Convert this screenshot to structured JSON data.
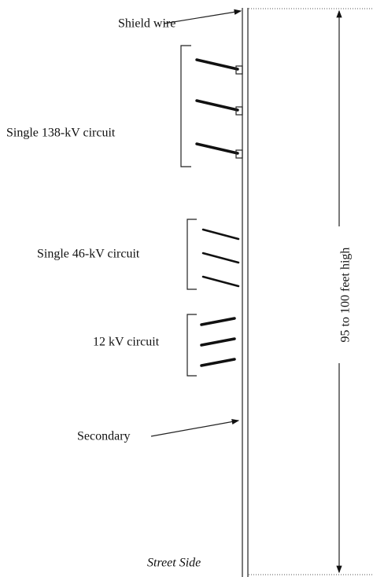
{
  "labels": {
    "shield_wire": "Shield wire",
    "circuit_138": "Single 138-kV circuit",
    "circuit_46": "Single 46-kV circuit",
    "circuit_12": "12 kV circuit",
    "secondary": "Secondary",
    "street_side": "Street Side",
    "height": "95 to 100 feet high"
  }
}
